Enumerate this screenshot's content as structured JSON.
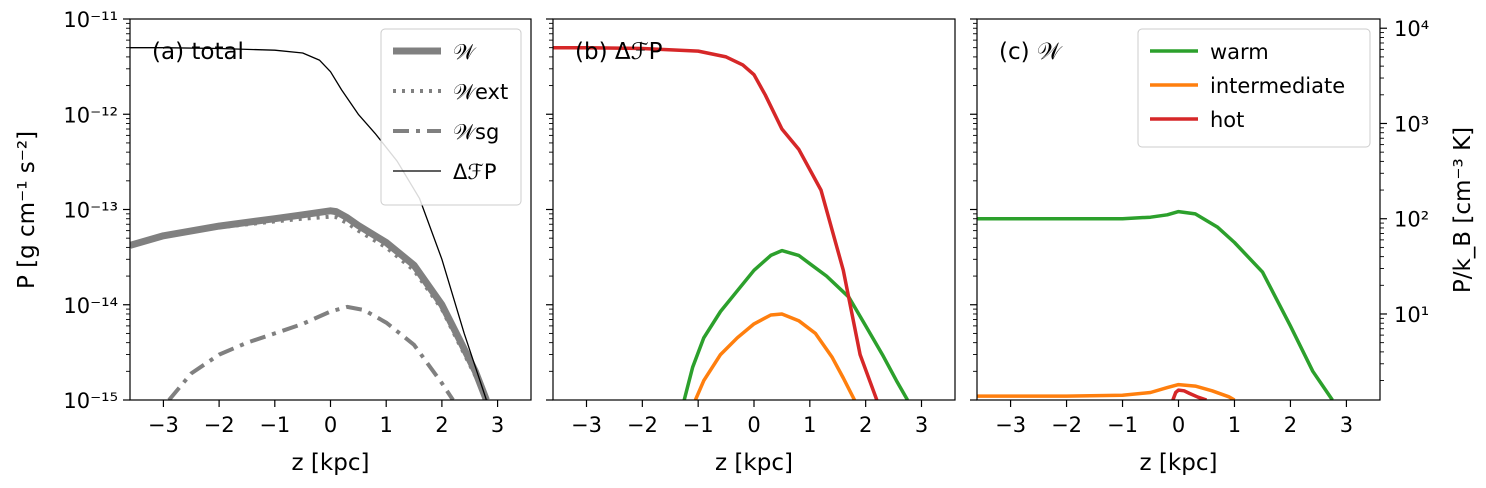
{
  "figure": {
    "ylabel_left": "P [g cm⁻¹ s⁻²]",
    "ylabel_right": "P/k_B [cm⁻³ K]",
    "xlabel": "z [kpc]"
  },
  "chart_data": [
    {
      "type": "line",
      "panel_label": "(a) total",
      "xlabel": "z [kpc]",
      "ylabel": "P [g cm⁻¹ s⁻²]",
      "yscale": "log",
      "xlim": [
        -3.6,
        3.6
      ],
      "ylim": [
        1e-15,
        1e-11
      ],
      "x_ticks": [
        -3,
        -2,
        -1,
        0,
        1,
        2,
        3
      ],
      "y_ticks": [
        {
          "value": 1e-15,
          "label": "10⁻¹⁵"
        },
        {
          "value": 1e-14,
          "label": "10⁻¹⁴"
        },
        {
          "value": 1e-13,
          "label": "10⁻¹³"
        },
        {
          "value": 1e-12,
          "label": "10⁻¹²"
        },
        {
          "value": 1e-11,
          "label": "10⁻¹¹"
        }
      ],
      "legend": "top-right",
      "series": [
        {
          "name": "𝒲",
          "color": "#808080",
          "style": "solid-thick",
          "x": [
            -3.6,
            -3,
            -2,
            -1,
            -0.5,
            0,
            0.1,
            0.3,
            0.5,
            1,
            1.5,
            2,
            2.3,
            2.6,
            2.8
          ],
          "y": [
            4.2e-14,
            5.3e-14,
            6.7e-14,
            8e-14,
            8.8e-14,
            9.7e-14,
            9.5e-14,
            8.2e-14,
            6.8e-14,
            4.5e-14,
            2.6e-14,
            1e-14,
            4.5e-15,
            2e-15,
            1e-15
          ]
        },
        {
          "name": "𝒲ext",
          "color": "#808080",
          "style": "dotted",
          "x": [
            -3.6,
            -3,
            -2,
            -1,
            -0.5,
            0,
            0.1,
            0.3,
            0.5,
            1,
            1.5,
            2,
            2.3,
            2.6,
            2.8
          ],
          "y": [
            4.2e-14,
            5.2e-14,
            6.5e-14,
            7.5e-14,
            8e-14,
            8.4e-14,
            8.3e-14,
            7.2e-14,
            6e-14,
            4e-14,
            2.3e-14,
            9e-15,
            4e-15,
            1.8e-15,
            1e-15
          ]
        },
        {
          "name": "𝒲sg",
          "color": "#808080",
          "style": "dashdot",
          "x": [
            -2.9,
            -2.5,
            -2,
            -1.5,
            -1,
            -0.5,
            0,
            0.3,
            0.6,
            1,
            1.5,
            2,
            2.2
          ],
          "y": [
            1e-15,
            1.9e-15,
            3e-15,
            4e-15,
            5e-15,
            6.3e-15,
            8.5e-15,
            9.5e-15,
            8.8e-15,
            6.5e-15,
            3.8e-15,
            1.5e-15,
            1e-15
          ]
        },
        {
          "name": "ΔℱP",
          "color": "#000000",
          "style": "solid-thin",
          "x": [
            -3.6,
            -3,
            -2,
            -1,
            -0.5,
            -0.2,
            0,
            0.2,
            0.5,
            0.8,
            1.2,
            1.6,
            2,
            2.4,
            2.8
          ],
          "y": [
            5e-12,
            5e-12,
            4.9e-12,
            4.7e-12,
            4.4e-12,
            3.7e-12,
            2.8e-12,
            1.8e-12,
            1e-12,
            6.3e-13,
            3.2e-13,
            1.3e-13,
            3e-14,
            5e-15,
            1e-15
          ]
        }
      ]
    },
    {
      "type": "line",
      "panel_label": "(b) ΔℱP",
      "xlabel": "z [kpc]",
      "yscale": "log",
      "xlim": [
        -3.6,
        3.6
      ],
      "ylim": [
        1e-15,
        1e-11
      ],
      "x_ticks": [
        -3,
        -2,
        -1,
        0,
        1,
        2,
        3
      ],
      "series": [
        {
          "name": "warm",
          "color": "#2ca02c",
          "style": "solid",
          "x": [
            -1.25,
            -1.1,
            -0.9,
            -0.6,
            -0.3,
            0,
            0.3,
            0.5,
            0.8,
            1,
            1.3,
            1.7,
            2,
            2.3,
            2.55,
            2.75
          ],
          "y": [
            1e-15,
            2.2e-15,
            4.5e-15,
            8.5e-15,
            1.4e-14,
            2.3e-14,
            3.3e-14,
            3.7e-14,
            3.3e-14,
            2.7e-14,
            2e-14,
            1.2e-14,
            6e-15,
            3e-15,
            1.6e-15,
            1e-15
          ]
        },
        {
          "name": "intermediate",
          "color": "#ff7f0e",
          "style": "solid",
          "x": [
            -1.05,
            -0.9,
            -0.6,
            -0.3,
            0,
            0.3,
            0.5,
            0.8,
            1.1,
            1.4,
            1.6,
            1.8
          ],
          "y": [
            1e-15,
            1.6e-15,
            3e-15,
            4.5e-15,
            6.3e-15,
            7.8e-15,
            8e-15,
            6.8e-15,
            5e-15,
            2.8e-15,
            1.7e-15,
            1e-15
          ]
        },
        {
          "name": "hot",
          "color": "#d62728",
          "style": "solid",
          "x": [
            -3.6,
            -3,
            -2,
            -1,
            -0.5,
            -0.2,
            0,
            0.2,
            0.5,
            0.8,
            1.2,
            1.6,
            1.9,
            2.2
          ],
          "y": [
            5e-12,
            5e-12,
            4.9e-12,
            4.6e-12,
            4e-12,
            3.3e-12,
            2.6e-12,
            1.6e-12,
            7e-13,
            4.3e-13,
            1.6e-13,
            2.3e-14,
            3e-15,
            1e-15
          ]
        }
      ]
    },
    {
      "type": "line",
      "panel_label": "(c) 𝒲",
      "xlabel": "z [kpc]",
      "ylabel_right": "P/k_B [cm⁻³ K]",
      "yscale": "log",
      "xlim": [
        -3.6,
        3.6
      ],
      "ylim": [
        1e-15,
        1e-11
      ],
      "x_ticks": [
        -3,
        -2,
        -1,
        0,
        1,
        2,
        3
      ],
      "y_ticks_right": [
        {
          "value": 10,
          "label": "10¹"
        },
        {
          "value": 100,
          "label": "10²"
        },
        {
          "value": 1000,
          "label": "10³"
        },
        {
          "value": 10000,
          "label": "10⁴"
        }
      ],
      "legend": "top-right",
      "series": [
        {
          "name": "warm",
          "color": "#2ca02c",
          "style": "solid",
          "x": [
            -3.6,
            -2,
            -1,
            -0.5,
            -0.2,
            0,
            0.3,
            0.7,
            1,
            1.5,
            2,
            2.4,
            2.75
          ],
          "y": [
            8e-14,
            8e-14,
            8e-14,
            8.3e-14,
            8.8e-14,
            9.5e-14,
            9e-14,
            6.5e-14,
            4.5e-14,
            2.2e-14,
            6e-15,
            2e-15,
            1e-15
          ]
        },
        {
          "name": "intermediate",
          "color": "#ff7f0e",
          "style": "solid",
          "x": [
            -3.6,
            -2,
            -1,
            -0.5,
            -0.2,
            0,
            0.3,
            0.6,
            0.9,
            1.0
          ],
          "y": [
            1.1e-15,
            1.1e-15,
            1.12e-15,
            1.2e-15,
            1.35e-15,
            1.45e-15,
            1.4e-15,
            1.25e-15,
            1.08e-15,
            1e-15
          ]
        },
        {
          "name": "hot",
          "color": "#d62728",
          "style": "solid",
          "x": [
            -0.1,
            -0.05,
            0,
            0.1,
            0.2,
            0.35,
            0.5
          ],
          "y": [
            1e-15,
            1.2e-15,
            1.27e-15,
            1.25e-15,
            1.17e-15,
            1.07e-15,
            1e-15
          ]
        }
      ]
    }
  ]
}
